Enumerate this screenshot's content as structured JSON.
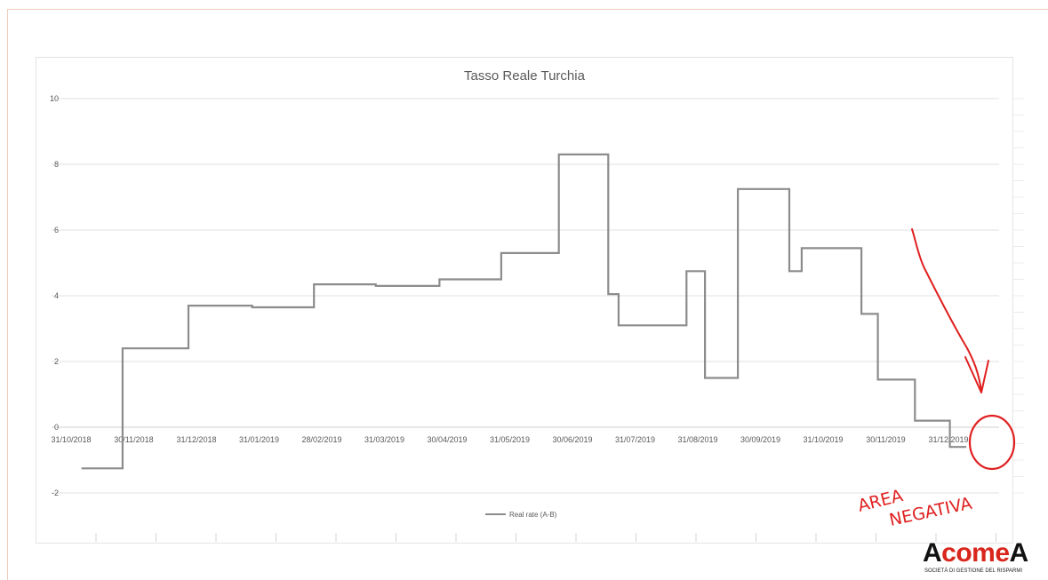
{
  "chart_data": {
    "type": "line",
    "step": true,
    "title": "Tasso Reale Turchia",
    "xlabel": "",
    "ylabel": "",
    "ylim": [
      -2,
      10
    ],
    "yticks": [
      10,
      8,
      6,
      4,
      2,
      0,
      -2
    ],
    "xtick_labels": [
      "31/10/2018",
      "30/11/2018",
      "31/12/2018",
      "31/01/2019",
      "28/02/2019",
      "31/03/2019",
      "30/04/2019",
      "31/05/2019",
      "30/06/2019",
      "31/07/2019",
      "31/08/2019",
      "30/09/2019",
      "31/10/2019",
      "30/11/2019",
      "31/12/2019"
    ],
    "grid": true,
    "legend": "bottom",
    "series": [
      {
        "name": "Real rate (A-B)",
        "color": "#8c8c8c",
        "points": [
          [
            "2018-11-05",
            -1.25
          ],
          [
            "2018-11-25",
            -1.25
          ],
          [
            "2018-11-25",
            2.4
          ],
          [
            "2018-12-27",
            2.4
          ],
          [
            "2018-12-27",
            3.7
          ],
          [
            "2019-01-27",
            3.7
          ],
          [
            "2019-01-27",
            3.65
          ],
          [
            "2019-02-26",
            3.65
          ],
          [
            "2019-02-26",
            4.35
          ],
          [
            "2019-03-28",
            4.35
          ],
          [
            "2019-03-28",
            4.3
          ],
          [
            "2019-04-28",
            4.3
          ],
          [
            "2019-04-28",
            4.5
          ],
          [
            "2019-05-28",
            4.5
          ],
          [
            "2019-05-28",
            5.3
          ],
          [
            "2019-06-25",
            5.3
          ],
          [
            "2019-06-25",
            8.3
          ],
          [
            "2019-07-19",
            8.3
          ],
          [
            "2019-07-19",
            4.05
          ],
          [
            "2019-07-24",
            4.05
          ],
          [
            "2019-07-24",
            3.1
          ],
          [
            "2019-08-26",
            3.1
          ],
          [
            "2019-08-26",
            4.75
          ],
          [
            "2019-09-04",
            4.75
          ],
          [
            "2019-09-04",
            1.5
          ],
          [
            "2019-09-20",
            1.5
          ],
          [
            "2019-09-20",
            7.25
          ],
          [
            "2019-10-15",
            7.25
          ],
          [
            "2019-10-15",
            4.75
          ],
          [
            "2019-10-21",
            4.75
          ],
          [
            "2019-10-21",
            5.45
          ],
          [
            "2019-11-19",
            5.45
          ],
          [
            "2019-11-19",
            3.45
          ],
          [
            "2019-11-27",
            3.45
          ],
          [
            "2019-11-27",
            1.45
          ],
          [
            "2019-12-15",
            1.45
          ],
          [
            "2019-12-15",
            0.2
          ],
          [
            "2020-01-01",
            0.2
          ],
          [
            "2020-01-01",
            -0.6
          ],
          [
            "2020-01-09",
            -0.6
          ]
        ]
      }
    ],
    "annotation": {
      "text_line1": "AREA",
      "text_line2": "NEGATIVA",
      "color": "#e02020"
    }
  },
  "logo": {
    "part1": "A",
    "part2": "come",
    "part3": "A",
    "subtitle": "SOCIETÀ DI GESTIONE DEL RISPARMI"
  }
}
